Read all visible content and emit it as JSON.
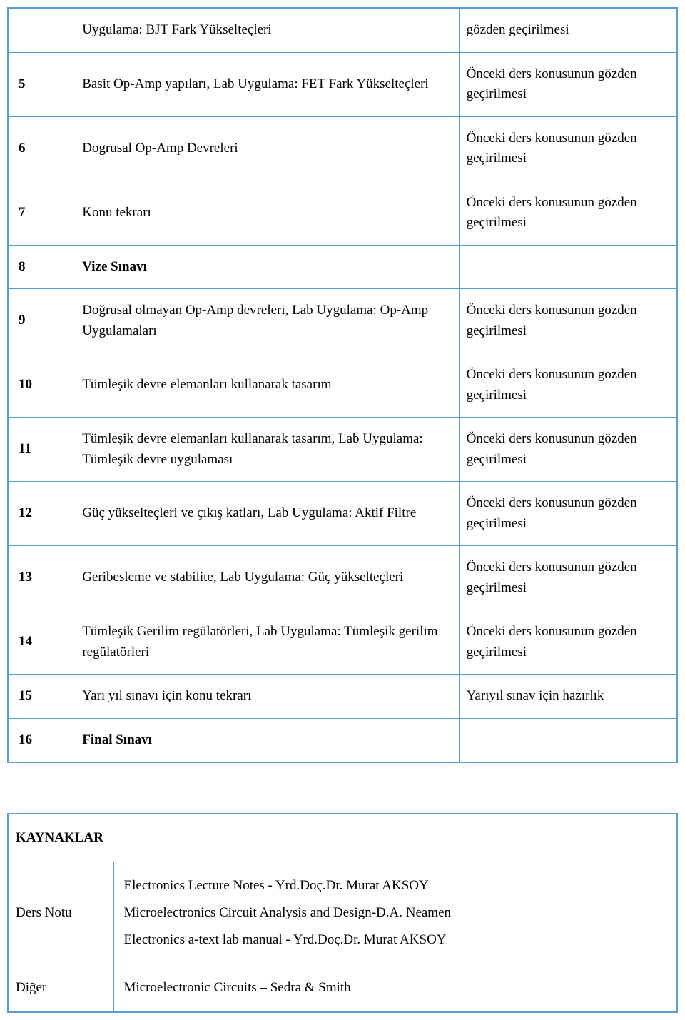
{
  "colors": {
    "border": "#5b9bd5",
    "background": "#ffffff",
    "text": "#000000"
  },
  "typography": {
    "font_family": "Times New Roman",
    "base_fontsize": 19
  },
  "schedule": {
    "rows": [
      {
        "week": "",
        "topic": "Uygulama: BJT Fark Yükselteçleri",
        "prep": "gözden geçirilmesi",
        "bold": false
      },
      {
        "week": "5",
        "topic": "Basit Op-Amp yapıları, Lab Uygulama: FET Fark Yükselteçleri",
        "prep": "Önceki ders konusunun gözden geçirilmesi",
        "bold": false
      },
      {
        "week": "6",
        "topic": "Dogrusal Op-Amp Devreleri",
        "prep": "Önceki ders konusunun gözden geçirilmesi",
        "bold": false
      },
      {
        "week": "7",
        "topic": "Konu tekrarı",
        "prep": "Önceki ders konusunun gözden geçirilmesi",
        "bold": false
      },
      {
        "week": "8",
        "topic": "Vize Sınavı",
        "prep": "",
        "bold": true
      },
      {
        "week": "9",
        "topic": "Doğrusal olmayan Op-Amp devreleri, Lab Uygulama: Op-Amp Uygulamaları",
        "prep": "Önceki ders konusunun gözden geçirilmesi",
        "bold": false
      },
      {
        "week": "10",
        "topic": "Tümleşik devre elemanları kullanarak tasarım",
        "prep": "Önceki ders konusunun gözden geçirilmesi",
        "bold": false
      },
      {
        "week": "11",
        "topic": "Tümleşik devre elemanları kullanarak tasarım, Lab Uygulama: Tümleşik devre uygulaması",
        "prep": "Önceki ders konusunun gözden geçirilmesi",
        "bold": false
      },
      {
        "week": "12",
        "topic": "Güç yükselteçleri ve çıkış katları, Lab Uygulama: Aktif Filtre",
        "prep": "Önceki ders konusunun gözden geçirilmesi",
        "bold": false
      },
      {
        "week": "13",
        "topic": "Geribesleme ve stabilite, Lab Uygulama: Güç yükselteçleri",
        "prep": "Önceki ders konusunun gözden geçirilmesi",
        "bold": false
      },
      {
        "week": "14",
        "topic": "Tümleşik Gerilim regülatörleri, Lab Uygulama: Tümleşik gerilim regülatörleri",
        "prep": "Önceki ders konusunun gözden geçirilmesi",
        "bold": false
      },
      {
        "week": "15",
        "topic": "Yarı yıl sınavı için konu tekrarı",
        "prep": "Yarıyıl sınav için hazırlık",
        "bold": false
      },
      {
        "week": "16",
        "topic": "Final Sınavı",
        "prep": "",
        "bold": true
      }
    ]
  },
  "resources": {
    "header": "KAYNAKLAR",
    "rows": [
      {
        "label": "Ders Notu",
        "items": [
          "Electronics Lecture Notes - Yrd.Doç.Dr. Murat AKSOY",
          "Microelectronics Circuit Analysis and Design-D.A. Neamen",
          "Electronics a-text lab manual - Yrd.Doç.Dr. Murat AKSOY"
        ]
      },
      {
        "label": "Diğer",
        "items": [
          "Microelectronic Circuits – Sedra & Smith"
        ]
      }
    ]
  }
}
